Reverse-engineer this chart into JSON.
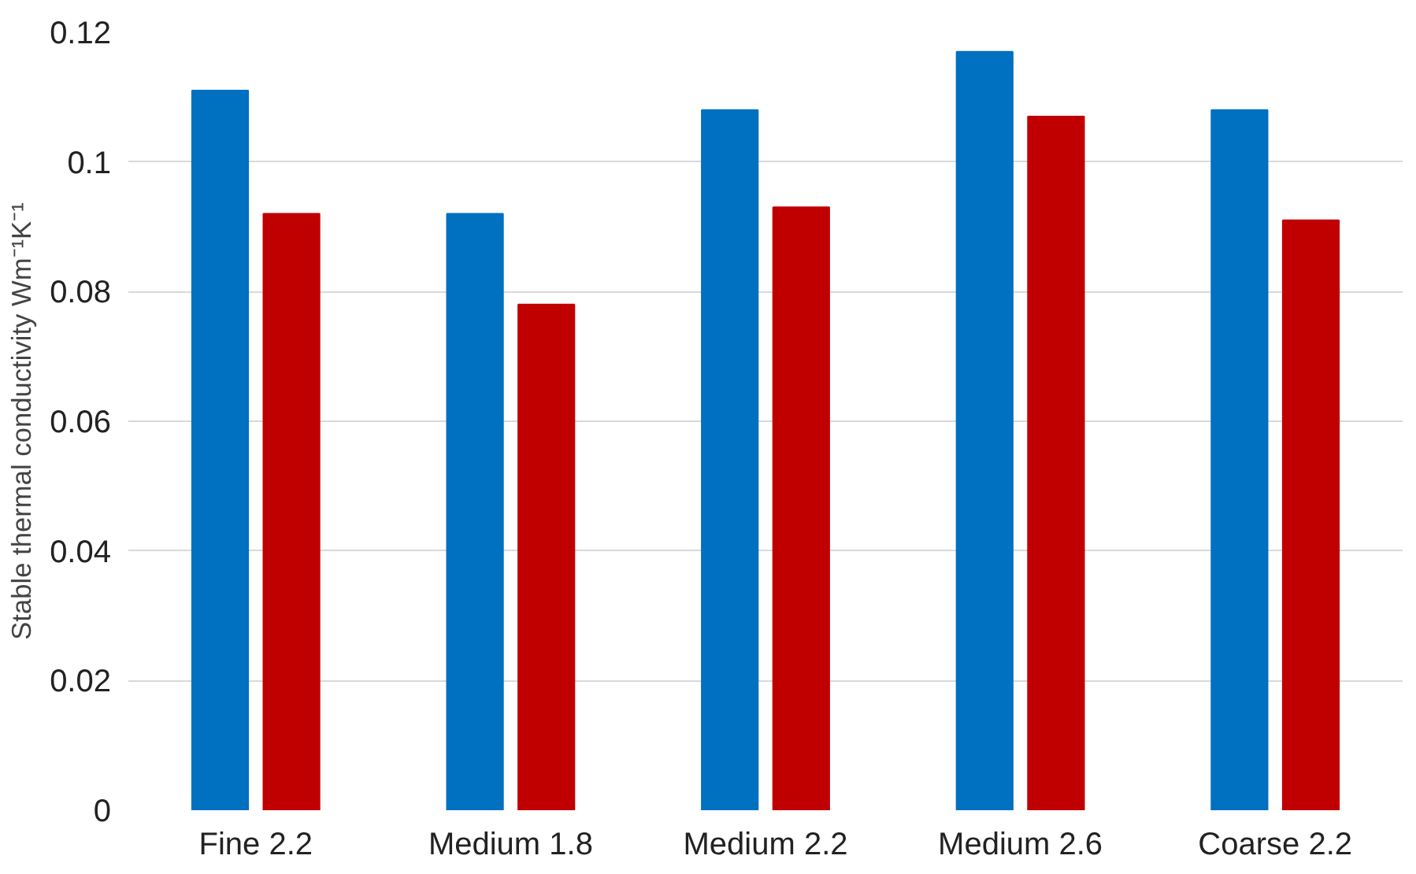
{
  "chart_data": {
    "type": "bar",
    "ylabel": "Stable thermal conductivity Wm⁻¹K⁻¹",
    "categories": [
      "Fine 2.2",
      "Medium 1.8",
      "Medium 2.2",
      "Medium 2.6",
      "Coarse 2.2"
    ],
    "series": [
      {
        "color": "#0070c0",
        "values": [
          0.111,
          0.092,
          0.108,
          0.117,
          0.108
        ]
      },
      {
        "color": "#c00000",
        "values": [
          0.092,
          0.078,
          0.093,
          0.107,
          0.091
        ]
      }
    ],
    "ylim": [
      0,
      0.12
    ],
    "yticks": [
      0,
      0.02,
      0.04,
      0.06,
      0.08,
      0.1,
      0.12
    ],
    "grid": "y"
  }
}
